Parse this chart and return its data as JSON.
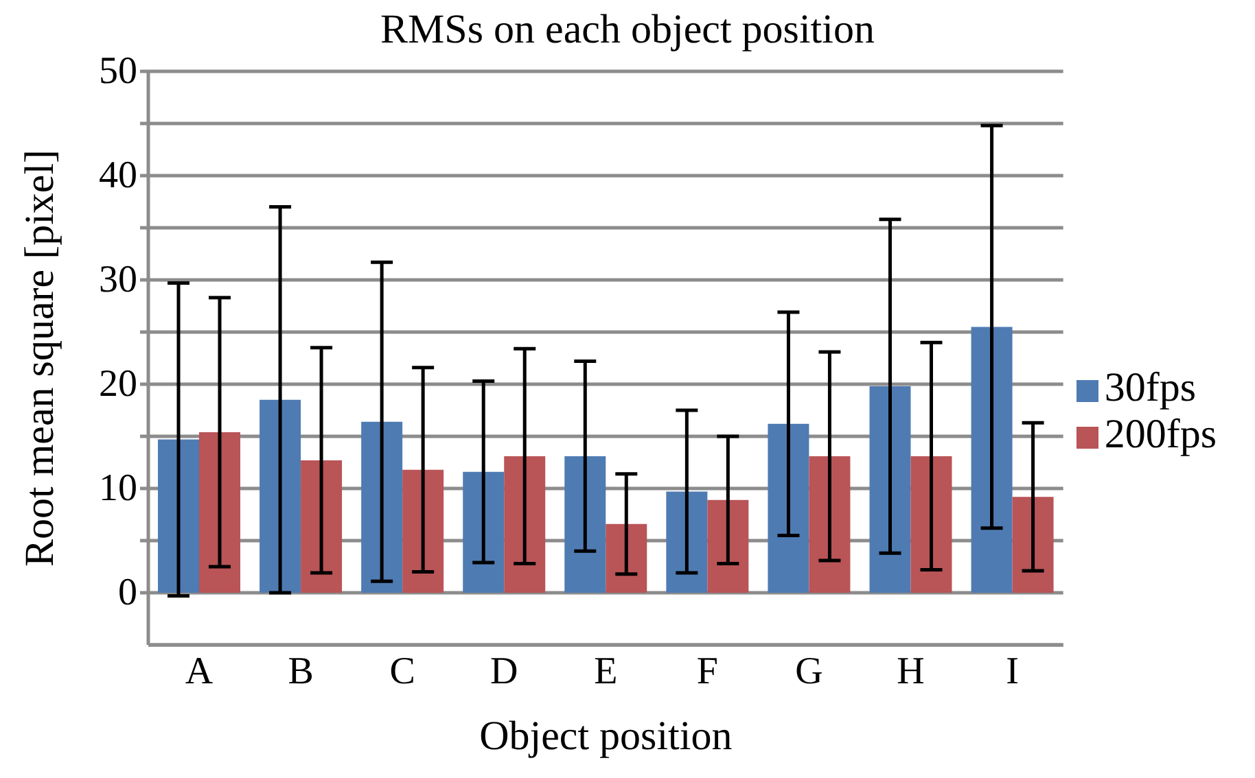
{
  "chart_data": {
    "type": "bar",
    "title": "RMSs on each object position",
    "xlabel": "Object position",
    "ylabel": "Root mean square [pixel]",
    "categories": [
      "A",
      "B",
      "C",
      "D",
      "E",
      "F",
      "G",
      "H",
      "I"
    ],
    "series": [
      {
        "name": "30fps",
        "color": "#4f7bb3",
        "values": [
          14.7,
          18.5,
          16.4,
          11.6,
          13.1,
          9.7,
          16.2,
          19.8,
          25.5
        ],
        "errors": [
          15,
          18.5,
          15.3,
          8.7,
          9.1,
          7.8,
          10.7,
          16,
          19.3
        ]
      },
      {
        "name": "200fps",
        "color": "#b95457",
        "values": [
          15.4,
          12.7,
          11.8,
          13.1,
          6.6,
          8.9,
          13.1,
          13.1,
          9.2
        ],
        "errors": [
          12.9,
          10.8,
          9.8,
          10.3,
          4.8,
          6.1,
          10,
          10.9,
          7.1
        ]
      }
    ],
    "ylim": [
      -5,
      50
    ],
    "yticks": [
      0,
      {
        "value": 5,
        "label": null
      },
      10,
      {
        "value": 15,
        "label": null
      },
      20,
      {
        "value": 25,
        "label": null
      },
      30,
      {
        "value": 35,
        "label": null
      },
      40,
      {
        "value": 45,
        "label": null
      },
      50
    ],
    "grid": "y",
    "legend": "right"
  }
}
